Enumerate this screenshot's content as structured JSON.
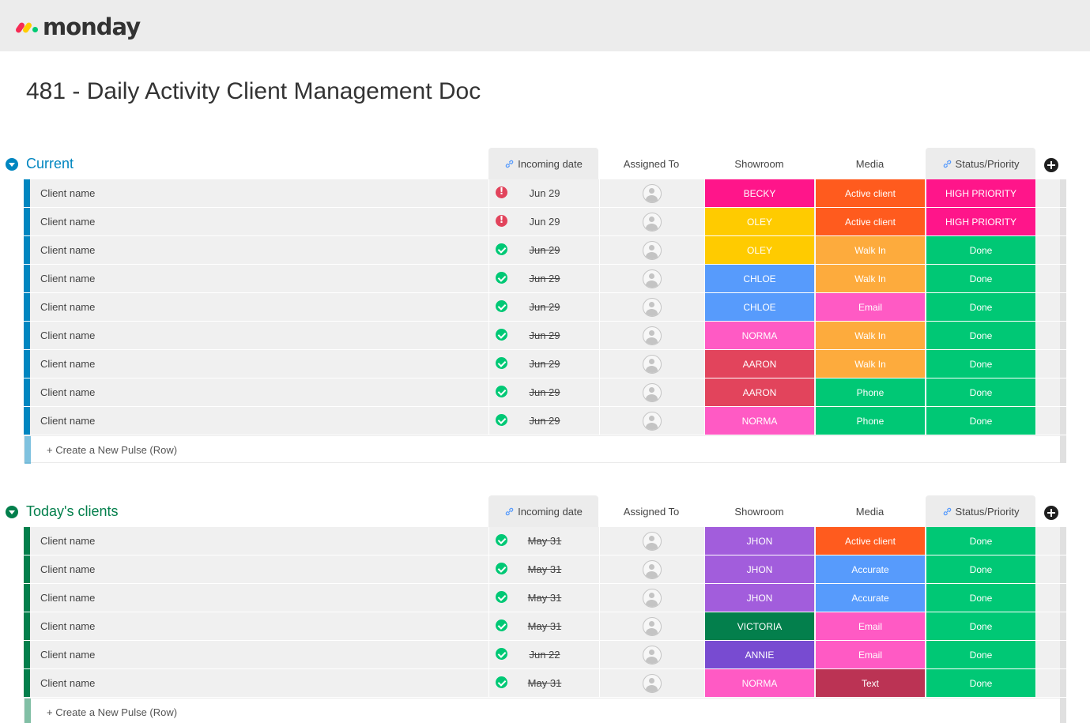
{
  "app": {
    "logo_text": "monday",
    "board_title": "481 - Daily Activity Client Management Doc"
  },
  "columns": {
    "incoming": "Incoming date",
    "assigned": "Assigned To",
    "showroom": "Showroom",
    "media": "Media",
    "status": "Status/Priority"
  },
  "colors": {
    "group_current": "#0086c0",
    "group_today": "#037f4c",
    "pink": "#ff158a",
    "orange": "#ff5b1e",
    "yellow": "#ffcb00",
    "light_orange": "#fdab3d",
    "blue": "#579bfc",
    "magenta": "#ff5ac4",
    "red": "#e2445c",
    "green": "#00c875",
    "purple": "#a25ddc",
    "dark_green": "#037f4c",
    "violet": "#784bd1",
    "dark_red": "#bb3354"
  },
  "groups": [
    {
      "title": "Current",
      "create_label": "+ Create a New Pulse (Row)",
      "rows": [
        {
          "name": "Client name",
          "status_icon": "warning-icon",
          "date": "Jun 29",
          "done": false,
          "showroom": "BECKY",
          "showroom_color": "#ff158a",
          "media": "Active client",
          "media_color": "#ff5b1e",
          "status": "HIGH PRIORITY",
          "status_color": "#ff158a"
        },
        {
          "name": "Client name",
          "status_icon": "warning-icon",
          "date": "Jun 29",
          "done": false,
          "showroom": "OLEY",
          "showroom_color": "#ffcb00",
          "media": "Active client",
          "media_color": "#ff5b1e",
          "status": "HIGH PRIORITY",
          "status_color": "#ff158a"
        },
        {
          "name": "Client name",
          "status_icon": "check-icon",
          "date": "Jun 29",
          "done": true,
          "showroom": "OLEY",
          "showroom_color": "#ffcb00",
          "media": "Walk In",
          "media_color": "#fdab3d",
          "status": "Done",
          "status_color": "#00c875"
        },
        {
          "name": "Client name",
          "status_icon": "check-icon",
          "date": "Jun 29",
          "done": true,
          "showroom": "CHLOE",
          "showroom_color": "#579bfc",
          "media": "Walk In",
          "media_color": "#fdab3d",
          "status": "Done",
          "status_color": "#00c875"
        },
        {
          "name": "Client name",
          "status_icon": "check-icon",
          "date": "Jun 29",
          "done": true,
          "showroom": "CHLOE",
          "showroom_color": "#579bfc",
          "media": "Email",
          "media_color": "#ff5ac4",
          "status": "Done",
          "status_color": "#00c875"
        },
        {
          "name": "Client name",
          "status_icon": "check-icon",
          "date": "Jun 29",
          "done": true,
          "showroom": "NORMA",
          "showroom_color": "#ff5ac4",
          "media": "Walk In",
          "media_color": "#fdab3d",
          "status": "Done",
          "status_color": "#00c875"
        },
        {
          "name": "Client name",
          "status_icon": "check-icon",
          "date": "Jun 29",
          "done": true,
          "showroom": "AARON",
          "showroom_color": "#e2445c",
          "media": "Walk In",
          "media_color": "#fdab3d",
          "status": "Done",
          "status_color": "#00c875"
        },
        {
          "name": "Client name",
          "status_icon": "check-icon",
          "date": "Jun 29",
          "done": true,
          "showroom": "AARON",
          "showroom_color": "#e2445c",
          "media": "Phone",
          "media_color": "#00c875",
          "status": "Done",
          "status_color": "#00c875"
        },
        {
          "name": "Client name",
          "status_icon": "check-icon",
          "date": "Jun 29",
          "done": true,
          "showroom": "NORMA",
          "showroom_color": "#ff5ac4",
          "media": "Phone",
          "media_color": "#00c875",
          "status": "Done",
          "status_color": "#00c875"
        }
      ]
    },
    {
      "title": "Today's clients",
      "create_label": "+ Create a New Pulse (Row)",
      "rows": [
        {
          "name": "Client name",
          "status_icon": "check-icon",
          "date": "May 31",
          "done": true,
          "showroom": "JHON",
          "showroom_color": "#a25ddc",
          "media": "Active client",
          "media_color": "#ff5b1e",
          "status": "Done",
          "status_color": "#00c875"
        },
        {
          "name": "Client name",
          "status_icon": "check-icon",
          "date": "May 31",
          "done": true,
          "showroom": "JHON",
          "showroom_color": "#a25ddc",
          "media": "Accurate",
          "media_color": "#579bfc",
          "status": "Done",
          "status_color": "#00c875"
        },
        {
          "name": "Client name",
          "status_icon": "check-icon",
          "date": "May 31",
          "done": true,
          "showroom": "JHON",
          "showroom_color": "#a25ddc",
          "media": "Accurate",
          "media_color": "#579bfc",
          "status": "Done",
          "status_color": "#00c875"
        },
        {
          "name": "Client name",
          "status_icon": "check-icon",
          "date": "May 31",
          "done": true,
          "showroom": "VICTORIA",
          "showroom_color": "#037f4c",
          "media": "Email",
          "media_color": "#ff5ac4",
          "status": "Done",
          "status_color": "#00c875"
        },
        {
          "name": "Client name",
          "status_icon": "check-icon",
          "date": "Jun 22",
          "done": true,
          "showroom": "ANNIE",
          "showroom_color": "#784bd1",
          "media": "Email",
          "media_color": "#ff5ac4",
          "status": "Done",
          "status_color": "#00c875"
        },
        {
          "name": "Client name",
          "status_icon": "check-icon",
          "date": "May 31",
          "done": true,
          "showroom": "NORMA",
          "showroom_color": "#ff5ac4",
          "media": "Text",
          "media_color": "#bb3354",
          "status": "Done",
          "status_color": "#00c875"
        }
      ]
    }
  ]
}
